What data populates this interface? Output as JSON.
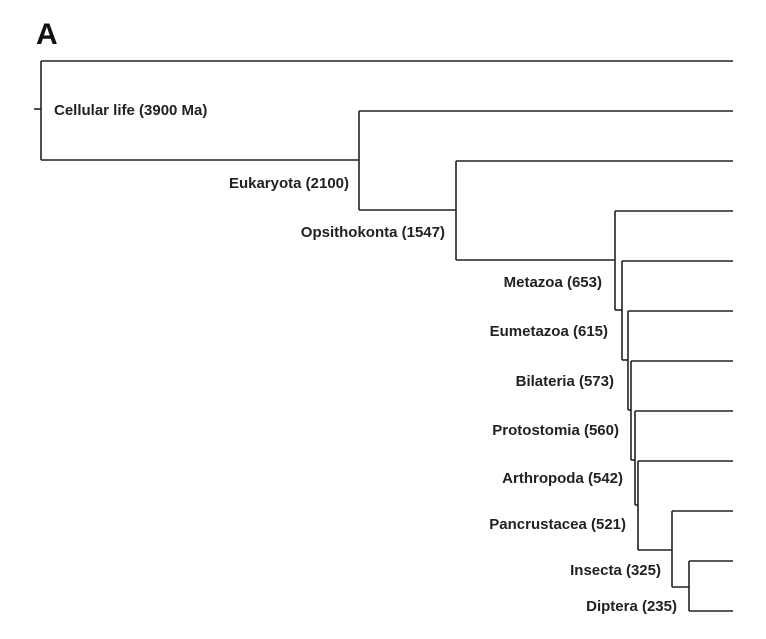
{
  "panel_label": "A",
  "nodes": [
    {
      "name": "Cellular life",
      "age_ma": "3900",
      "label": "Cellular life (3900  Ma)"
    },
    {
      "name": "Eukaryota",
      "age_ma": "2100",
      "label": "Eukaryota (2100)"
    },
    {
      "name": "Opsithokonta",
      "age_ma": "1547",
      "label": "Opsithokonta (1547)"
    },
    {
      "name": "Metazoa",
      "age_ma": "653",
      "label": "Metazoa (653)"
    },
    {
      "name": "Eumetazoa",
      "age_ma": "615",
      "label": "Eumetazoa (615)"
    },
    {
      "name": "Bilateria",
      "age_ma": "573",
      "label": "Bilateria (573)"
    },
    {
      "name": "Protostomia",
      "age_ma": "560",
      "label": "Protostomia (560)"
    },
    {
      "name": "Arthropoda",
      "age_ma": "542",
      "label": "Arthropoda (542)"
    },
    {
      "name": "Pancrustacea",
      "age_ma": "521",
      "label": "Pancrustacea (521)"
    },
    {
      "name": "Insecta",
      "age_ma": "325",
      "label": "Insecta (325)"
    },
    {
      "name": "Diptera",
      "age_ma": "235",
      "label": "Diptera (235)"
    }
  ],
  "colors": {
    "line": "#222222",
    "text": "#222222"
  }
}
